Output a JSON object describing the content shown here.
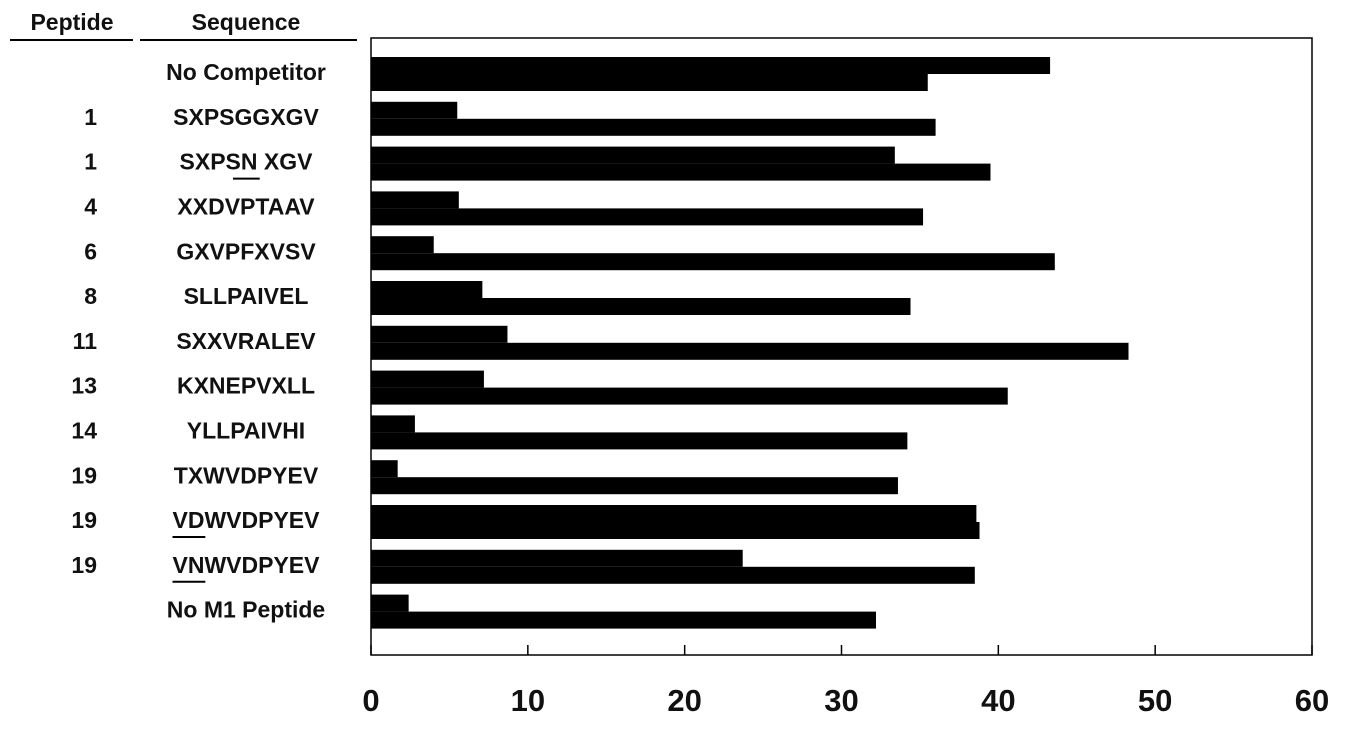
{
  "chart_data": {
    "type": "bar",
    "orientation": "horizontal",
    "column_headers": [
      "Peptide",
      "Sequence"
    ],
    "peptides": [
      null,
      "1",
      "1",
      "4",
      "6",
      "8",
      "11",
      "13",
      "14",
      "19",
      "19",
      "19",
      null
    ],
    "categories": [
      "No Competitor",
      "SXPSGGXGV",
      "SXPSN  XGV",
      "XXDVPTAAV",
      "GXVPFXVSV",
      "SLLPAIVEL",
      "SXXVRALEV",
      "KXNEPVXLL",
      "YLLPAIVHI",
      "TXWVDPYEV",
      "VDWVDPYEV",
      "VNWVDPYEV",
      "No M1 Peptide"
    ],
    "underline": [
      null,
      null,
      [
        4,
        6
      ],
      null,
      null,
      null,
      null,
      null,
      null,
      null,
      [
        0,
        2
      ],
      [
        0,
        2
      ],
      null
    ],
    "series": [
      {
        "color": "#000000",
        "values": [
          43.3,
          5.5,
          33.4,
          5.6,
          4.0,
          7.1,
          8.7,
          7.2,
          2.8,
          1.7,
          38.6,
          23.7,
          2.4
        ]
      },
      {
        "color": "#000000",
        "values": [
          35.5,
          36.0,
          39.5,
          35.2,
          43.6,
          34.4,
          48.3,
          40.6,
          34.2,
          33.6,
          38.8,
          38.5,
          32.2
        ]
      }
    ],
    "xlim": [
      0,
      60
    ],
    "xticks": [
      0,
      10,
      20,
      30,
      40,
      50,
      60
    ]
  }
}
